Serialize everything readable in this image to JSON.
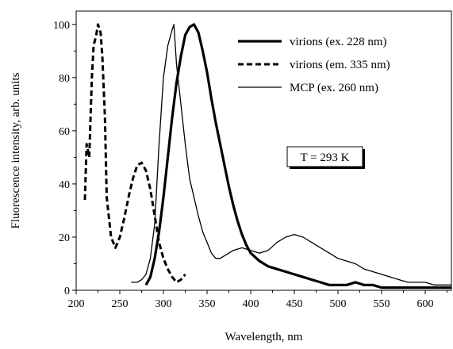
{
  "chart_data": {
    "type": "line",
    "xlabel": "Wavelength, nm",
    "ylabel": "Fluorescence intensity, arb. units",
    "xlim": [
      200,
      630
    ],
    "ylim": [
      0,
      105
    ],
    "x_ticks": [
      200,
      250,
      300,
      350,
      400,
      450,
      500,
      550,
      600
    ],
    "y_ticks": [
      0,
      20,
      40,
      60,
      80,
      100
    ],
    "grid": false,
    "legend_position": "top-right",
    "annotation": "T = 293 K",
    "series": [
      {
        "name": "virions (ex. 228 nm)",
        "style": "thick-solid",
        "color": "#000000",
        "x": [
          280,
          285,
          290,
          295,
          300,
          305,
          310,
          315,
          320,
          325,
          330,
          335,
          340,
          345,
          350,
          355,
          360,
          365,
          370,
          375,
          380,
          385,
          390,
          395,
          400,
          410,
          420,
          430,
          440,
          450,
          460,
          470,
          480,
          490,
          500,
          510,
          520,
          530,
          540,
          550,
          560,
          570,
          580,
          590,
          600,
          610,
          620,
          630
        ],
        "y": [
          2,
          5,
          12,
          22,
          35,
          50,
          65,
          78,
          88,
          96,
          99,
          100,
          97,
          90,
          82,
          72,
          63,
          55,
          47,
          39,
          32,
          26,
          21,
          17,
          14,
          11,
          9,
          8,
          7,
          6,
          5,
          4,
          3,
          2,
          2,
          2,
          3,
          2,
          2,
          1,
          1,
          1,
          1,
          1,
          1,
          1,
          1,
          1
        ]
      },
      {
        "name": "virions (em. 335 nm)",
        "style": "dashed",
        "color": "#000000",
        "x": [
          210,
          212,
          215,
          218,
          220,
          223,
          225,
          228,
          230,
          233,
          235,
          240,
          245,
          250,
          255,
          260,
          265,
          270,
          275,
          280,
          285,
          290,
          295,
          300,
          305,
          310,
          315,
          320,
          325
        ],
        "y": [
          34,
          55,
          50,
          80,
          92,
          96,
          100,
          97,
          88,
          65,
          35,
          20,
          16,
          20,
          27,
          35,
          42,
          47,
          48,
          45,
          38,
          28,
          18,
          12,
          8,
          5,
          3,
          4,
          6
        ]
      },
      {
        "name": "MCP (ex. 260 nm)",
        "style": "thin-solid",
        "color": "#000000",
        "x": [
          263,
          270,
          275,
          280,
          285,
          290,
          295,
          300,
          305,
          310,
          312,
          315,
          320,
          325,
          330,
          335,
          340,
          345,
          350,
          355,
          360,
          365,
          370,
          380,
          390,
          400,
          410,
          420,
          430,
          440,
          450,
          460,
          470,
          480,
          490,
          500,
          510,
          520,
          530,
          540,
          550,
          560,
          570,
          580,
          590,
          600,
          610,
          620,
          630
        ],
        "y": [
          3,
          3,
          4,
          6,
          12,
          25,
          55,
          80,
          92,
          98,
          100,
          85,
          70,
          55,
          42,
          35,
          28,
          22,
          18,
          14,
          12,
          12,
          13,
          15,
          16,
          15,
          14,
          15,
          18,
          20,
          21,
          20,
          18,
          16,
          14,
          12,
          11,
          10,
          8,
          7,
          6,
          5,
          4,
          3,
          3,
          3,
          2,
          2,
          2
        ]
      }
    ]
  }
}
